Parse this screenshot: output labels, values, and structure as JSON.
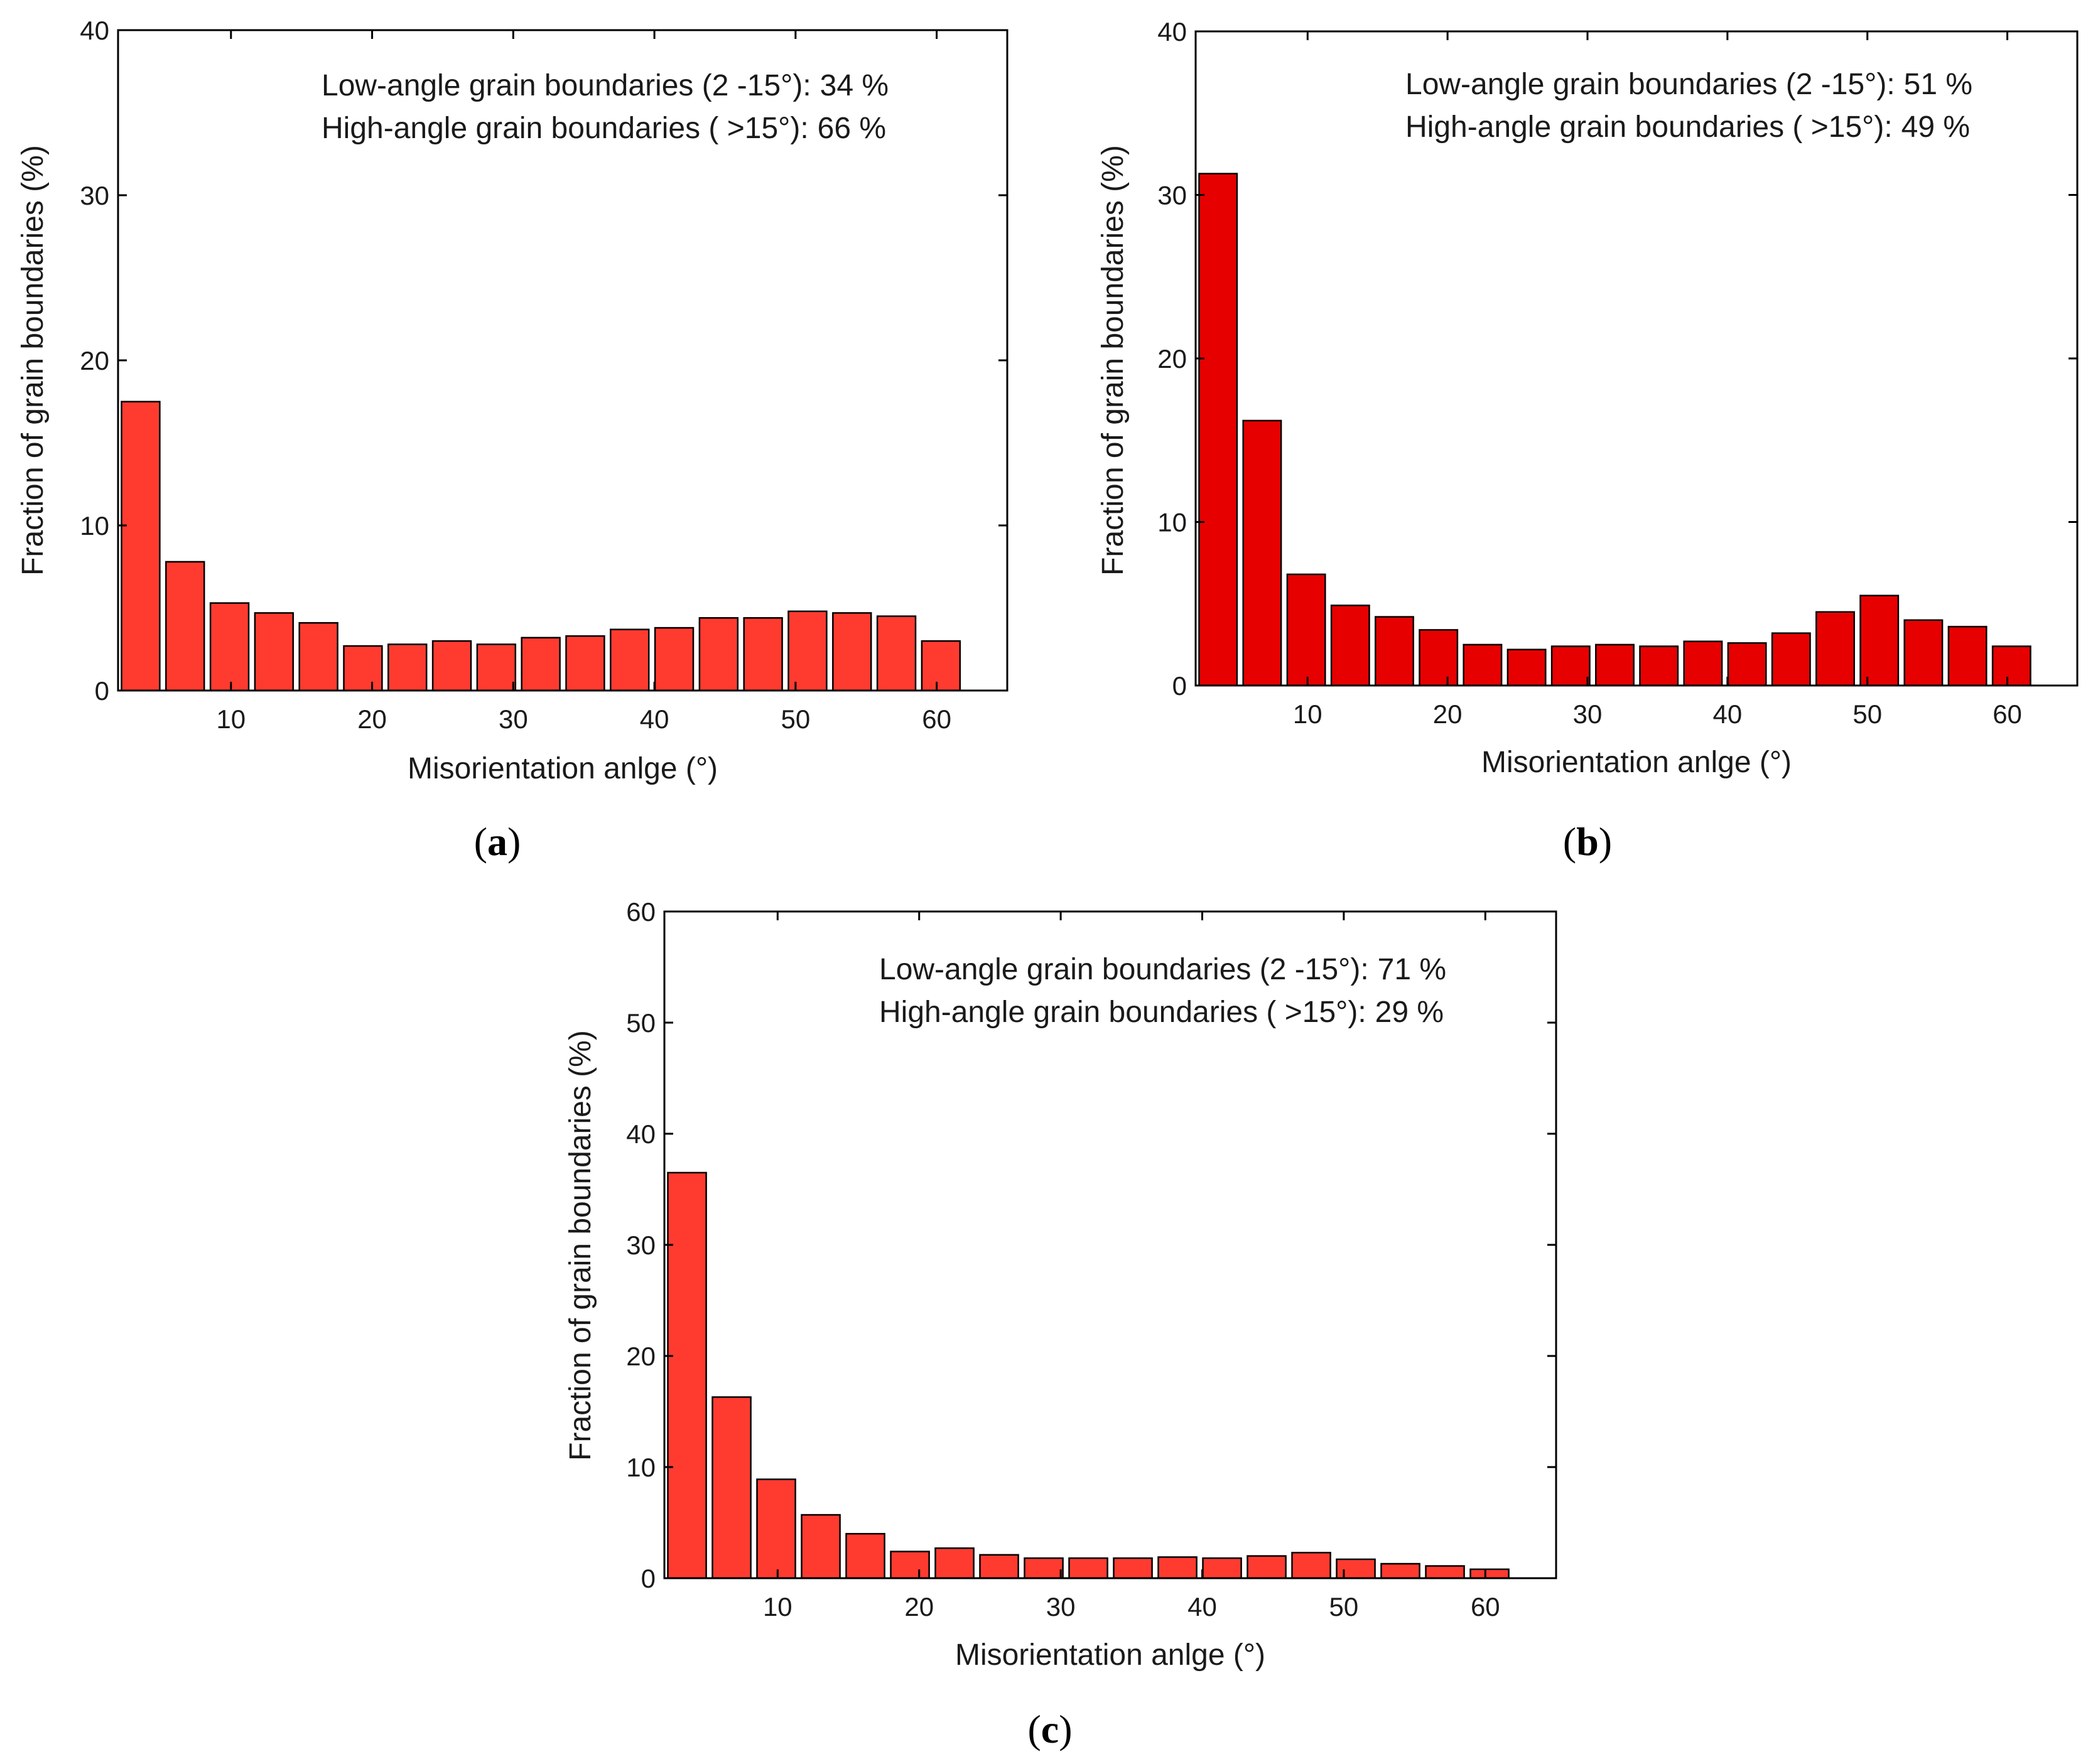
{
  "chart_data": [
    {
      "type": "bar",
      "panel": "a",
      "caption": [
        "(",
        "a",
        ")"
      ],
      "xlabel": "Misorientation anlge (°)",
      "ylabel": "Fraction of grain boundaries (%)",
      "xlim": [
        2,
        65
      ],
      "ylim": [
        0,
        40
      ],
      "xticks": [
        10,
        20,
        30,
        40,
        50,
        60
      ],
      "yticks": [
        0,
        10,
        20,
        30,
        40
      ],
      "bar_color": "#ff3b30",
      "bin_width": 3.15,
      "annotations": [
        {
          "label": "Low-angle grain boundaries (2 -15°):",
          "value": "34 %"
        },
        {
          "label": "High-angle grain boundaries ( >15°):",
          "value": "66 %"
        }
      ],
      "x": [
        3.6,
        6.75,
        9.9,
        13.05,
        16.2,
        19.35,
        22.5,
        25.65,
        28.8,
        31.95,
        35.1,
        38.25,
        41.4,
        44.55,
        47.7,
        50.85,
        54.0,
        57.15,
        60.3
      ],
      "values": [
        17.5,
        7.8,
        5.3,
        4.7,
        4.1,
        2.7,
        2.8,
        3.0,
        2.8,
        3.2,
        3.3,
        3.7,
        3.8,
        4.4,
        4.4,
        4.8,
        4.7,
        4.5,
        3.0
      ]
    },
    {
      "type": "bar",
      "panel": "b",
      "caption": [
        "(",
        "b",
        ")"
      ],
      "xlabel": "Misorientation anlge (°)",
      "ylabel": "Fraction of grain boundaries (%)",
      "xlim": [
        2,
        65
      ],
      "ylim": [
        0,
        40
      ],
      "xticks": [
        10,
        20,
        30,
        40,
        50,
        60
      ],
      "yticks": [
        0,
        10,
        20,
        30,
        40
      ],
      "bar_color": "#e60000",
      "bin_width": 3.15,
      "annotations": [
        {
          "label": "Low-angle grain boundaries (2 -15°):",
          "value": "51 %"
        },
        {
          "label": "High-angle grain boundaries ( >15°):",
          "value": "49 %"
        }
      ],
      "x": [
        3.6,
        6.75,
        9.9,
        13.05,
        16.2,
        19.35,
        22.5,
        25.65,
        28.8,
        31.95,
        35.1,
        38.25,
        41.4,
        44.55,
        47.7,
        50.85,
        54.0,
        57.15,
        60.3
      ],
      "values": [
        31.3,
        16.2,
        6.8,
        4.9,
        4.2,
        3.4,
        2.5,
        2.2,
        2.4,
        2.5,
        2.4,
        2.7,
        2.6,
        3.2,
        4.5,
        5.5,
        4.0,
        3.6,
        2.4
      ]
    },
    {
      "type": "bar",
      "panel": "c",
      "caption": [
        "(",
        "c",
        ")"
      ],
      "xlabel": "Misorientation anlge (°)",
      "ylabel": "Fraction of grain boundaries (%)",
      "xlim": [
        2,
        65
      ],
      "ylim": [
        0,
        60
      ],
      "xticks": [
        10,
        20,
        30,
        40,
        50,
        60
      ],
      "yticks": [
        0,
        10,
        20,
        30,
        40,
        50,
        60
      ],
      "bar_color": "#ff3b30",
      "bin_width": 3.15,
      "annotations": [
        {
          "label": "Low-angle grain boundaries (2 -15°):",
          "value": "71 %"
        },
        {
          "label": "High-angle grain boundaries ( >15°):",
          "value": "29 %"
        }
      ],
      "x": [
        3.6,
        6.75,
        9.9,
        13.05,
        16.2,
        19.35,
        22.5,
        25.65,
        28.8,
        31.95,
        35.1,
        38.25,
        41.4,
        44.55,
        47.7,
        50.85,
        54.0,
        57.15,
        60.3
      ],
      "values": [
        36.5,
        16.3,
        8.9,
        5.7,
        4.0,
        2.4,
        2.7,
        2.1,
        1.8,
        1.8,
        1.8,
        1.9,
        1.8,
        2.0,
        2.3,
        1.7,
        1.3,
        1.1,
        0.8
      ]
    }
  ]
}
